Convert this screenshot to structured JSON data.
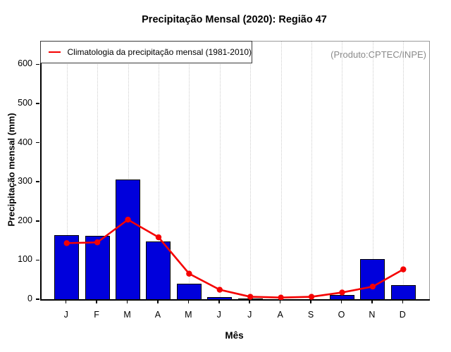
{
  "header": {
    "title": "Precipitação Mensal (2020): Região 47"
  },
  "legend": {
    "series_label": "Climatologia da precipitação mensal (1981-2010)"
  },
  "annotations": {
    "source": "(Produto:CPTEC/INPE)"
  },
  "axes": {
    "x_title": "Mês",
    "y_title": "Precipitação mensal (mm)",
    "y_ticks": [
      0,
      100,
      200,
      300,
      400,
      500,
      600
    ],
    "x_ticks": [
      "J",
      "F",
      "M",
      "A",
      "M",
      "J",
      "J",
      "A",
      "S",
      "O",
      "N",
      "D"
    ]
  },
  "colors": {
    "bar_fill": "#0000DC",
    "bar_border": "#000000",
    "line": "#F50000",
    "gridline": "#CDCDCD",
    "annotation_gray": "#8A8A8A"
  },
  "chart_data": {
    "type": "bar",
    "title": "Precipitação Mensal (2020): Região 47",
    "xlabel": "Mês",
    "ylabel": "Precipitação mensal (mm)",
    "categories": [
      "J",
      "F",
      "M",
      "A",
      "M",
      "J",
      "J",
      "A",
      "S",
      "O",
      "N",
      "D"
    ],
    "series": [
      {
        "name": "Precipitação mensal 2020",
        "type": "bar",
        "color": "#0000DC",
        "values": [
          165,
          163,
          307,
          149,
          41,
          7,
          3,
          1,
          1,
          12,
          105,
          38
        ]
      },
      {
        "name": "Climatologia da precipitação mensal (1981-2010)",
        "type": "line",
        "color": "#F50000",
        "values": [
          145,
          147,
          205,
          160,
          67,
          26,
          8,
          6,
          8,
          19,
          34,
          78
        ]
      }
    ],
    "yticks": [
      0,
      100,
      200,
      300,
      400,
      500,
      600
    ],
    "ylim": [
      0,
      660
    ],
    "grid": "vertical-dotted",
    "legend_position": "top-left",
    "annotation": "(Produto:CPTEC/INPE)"
  }
}
